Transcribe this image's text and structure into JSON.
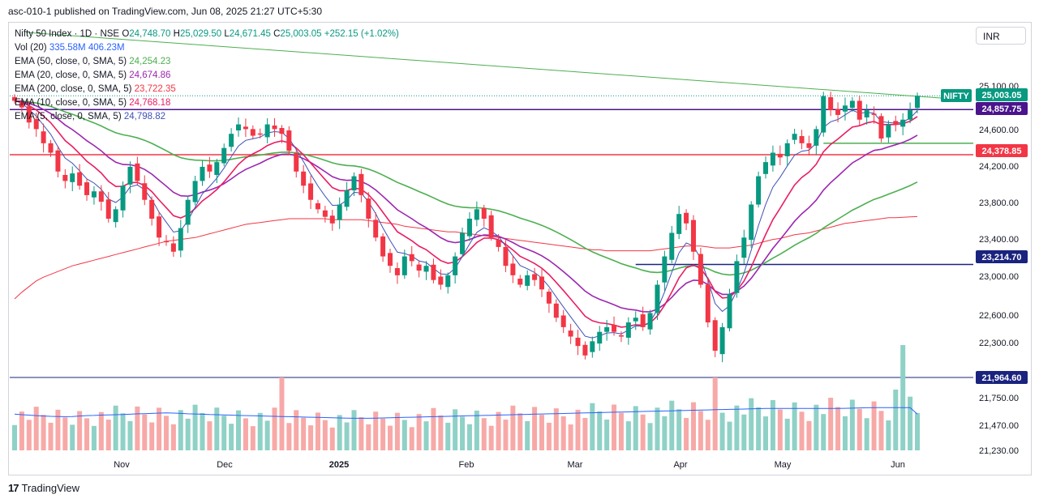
{
  "publish_line": "asc-010-1 published on TradingView.com, Jun 08, 2025 21:27 UTC+5:30",
  "currency": "INR",
  "footer_brand": "TradingView",
  "legend": {
    "symbol": "Nifty 50 Index · 1D · NSE",
    "o_label": "O",
    "o": "24,748.70",
    "h_label": "H",
    "h": "25,029.50",
    "l_label": "L",
    "l": "24,671.45",
    "c_label": "C",
    "c": "25,003.05",
    "chg": "+252.15 (+1.02%)",
    "vol_label": "Vol (20)",
    "vol_a": "335.58M",
    "vol_b": "406.23M",
    "ema50_label": "EMA (50, close, 0, SMA, 5)",
    "ema50": "24,254.23",
    "ema20_label": "EMA (20, close, 0, SMA, 5)",
    "ema20": "24,674.86",
    "ema200_label": "EMA (200, close, 0, SMA, 5)",
    "ema200": "23,722.35",
    "ema10_label": "EMA (10, close, 0, SMA, 5)",
    "ema10": "24,768.18",
    "ema5_label": "EMA (5, close, 0, SMA, 5)",
    "ema5": "24,798.82"
  },
  "colors": {
    "up": "#089981",
    "down": "#f23645",
    "up_vol": "#8fd1c6",
    "down_vol": "#f7a9a7",
    "ema5": "#3f51b5",
    "ema10": "#e91e63",
    "ema20": "#9c27b0",
    "ema50": "#4caf50",
    "ema200": "#f23645",
    "hline_purple": "#4a148c",
    "hline_red": "#f23645",
    "hline_navy": "#1a237e",
    "hline_green": "#4caf50"
  },
  "chart_data": {
    "type": "candlestick",
    "y_axis_ticks": [
      "25,100.00",
      "24,600.00",
      "24,200.00",
      "23,800.00",
      "23,400.00",
      "23,000.00",
      "22,600.00",
      "22,300.00",
      "21,750.00",
      "21,470.00",
      "21,230.00"
    ],
    "y_range": [
      21150,
      25300
    ],
    "x_axis_labels": [
      "Nov",
      "Dec",
      "2025",
      "Feb",
      "Mar",
      "Apr",
      "May",
      "Jun"
    ],
    "price_labels": [
      {
        "text": "NIFTY",
        "value": 25003.05,
        "style": "symbol"
      },
      {
        "text": "25,003.05",
        "value": 25003.05,
        "style": "last"
      },
      {
        "text": "24,857.75",
        "value": 24857.75,
        "style": "purple"
      },
      {
        "text": "24,378.85",
        "value": 24378.85,
        "style": "red"
      },
      {
        "text": "23,214.70",
        "value": 23214.7,
        "style": "navy"
      },
      {
        "text": "21,964.60",
        "value": 21964.6,
        "style": "navy"
      }
    ],
    "hlines": [
      24857.75,
      24378.85,
      23214.7,
      21964.6,
      24500
    ],
    "trendline": {
      "from": [
        0,
        25430
      ],
      "to": [
        1,
        25000
      ]
    },
    "closes": [
      24950,
      24880,
      24720,
      24650,
      24500,
      24400,
      24200,
      24100,
      24180,
      24050,
      23950,
      23990,
      23880,
      23700,
      23800,
      24050,
      24250,
      24100,
      23900,
      23700,
      23500,
      23450,
      23350,
      23600,
      23900,
      24100,
      24250,
      24200,
      24300,
      24450,
      24600,
      24700,
      24650,
      24580,
      24600,
      24700,
      24650,
      24600,
      24420,
      24200,
      24050,
      23900,
      23800,
      23720,
      23650,
      23850,
      24000,
      24150,
      23950,
      23700,
      23500,
      23300,
      23200,
      23100,
      23300,
      23250,
      23150,
      23200,
      23050,
      23000,
      23100,
      23300,
      23550,
      23700,
      23800,
      23700,
      23500,
      23400,
      23200,
      23100,
      23000,
      23100,
      23050,
      22950,
      22800,
      22650,
      22550,
      22450,
      22350,
      22250,
      22400,
      22500,
      22550,
      22500,
      22450,
      22600,
      22650,
      22550,
      22700,
      23000,
      23300,
      23550,
      23750,
      23650,
      23350,
      23000,
      22600,
      22300,
      22550,
      22900,
      23250,
      23500,
      23850,
      24150,
      24300,
      24400,
      24350,
      24500,
      24600,
      24500,
      24450,
      24650,
      25000,
      24850,
      24800,
      24900,
      24950,
      24750,
      24850,
      24800,
      24550,
      24700,
      24700,
      24750,
      24850,
      25003.05
    ],
    "ema200": [
      22850,
      22920,
      22980,
      23040,
      23080,
      23110,
      23140,
      23170,
      23200,
      23220,
      23240,
      23260,
      23280,
      23300,
      23320,
      23340,
      23360,
      23380,
      23400,
      23420,
      23440,
      23460,
      23470,
      23480,
      23490,
      23500,
      23520,
      23540,
      23560,
      23580,
      23600,
      23620,
      23640,
      23650,
      23660,
      23670,
      23680,
      23690,
      23700,
      23700,
      23700,
      23700,
      23700,
      23700,
      23690,
      23690,
      23690,
      23690,
      23690,
      23680,
      23670,
      23660,
      23650,
      23640,
      23620,
      23610,
      23600,
      23590,
      23580,
      23570,
      23560,
      23560,
      23550,
      23540,
      23530,
      23520,
      23510,
      23500,
      23490,
      23480,
      23470,
      23460,
      23450,
      23440,
      23430,
      23420,
      23410,
      23400,
      23390,
      23380,
      23370,
      23370,
      23360,
      23360,
      23360,
      23360,
      23360,
      23360,
      23360,
      23370,
      23380,
      23390,
      23400,
      23410,
      23410,
      23410,
      23400,
      23390,
      23390,
      23390,
      23400,
      23410,
      23420,
      23440,
      23460,
      23480,
      23490,
      23510,
      23530,
      23540,
      23550,
      23570,
      23590,
      23610,
      23630,
      23650,
      23660,
      23670,
      23680,
      23690,
      23700,
      23710,
      23710,
      23715,
      23720,
      23722.35
    ],
    "volume_ma": [
      406,
      400,
      395,
      390,
      385,
      382,
      380,
      378,
      380,
      385,
      390,
      392,
      395,
      398,
      400,
      402,
      405,
      410,
      412,
      415,
      418,
      420,
      418,
      415,
      410,
      408,
      405,
      402,
      400,
      398,
      395,
      392,
      390,
      388,
      386,
      384,
      382,
      380,
      378,
      376,
      374,
      372,
      370,
      368,
      366,
      364,
      362,
      360,
      360,
      360,
      362,
      364,
      366,
      368,
      370,
      372,
      374,
      376,
      378,
      380,
      382,
      384,
      386,
      388,
      390,
      392,
      394,
      396,
      398,
      400,
      402,
      404,
      406,
      408,
      410,
      412,
      414,
      416,
      418,
      420,
      422,
      424,
      426,
      428,
      430,
      432,
      434,
      436,
      438,
      440,
      442,
      444,
      446,
      448,
      450,
      452,
      454,
      456,
      458,
      460,
      462,
      464,
      466,
      468,
      470,
      470,
      470,
      470,
      470,
      470,
      470,
      470,
      470,
      470,
      470,
      472,
      474,
      476,
      478,
      480,
      480,
      480,
      480,
      480,
      480,
      406.23
    ]
  }
}
